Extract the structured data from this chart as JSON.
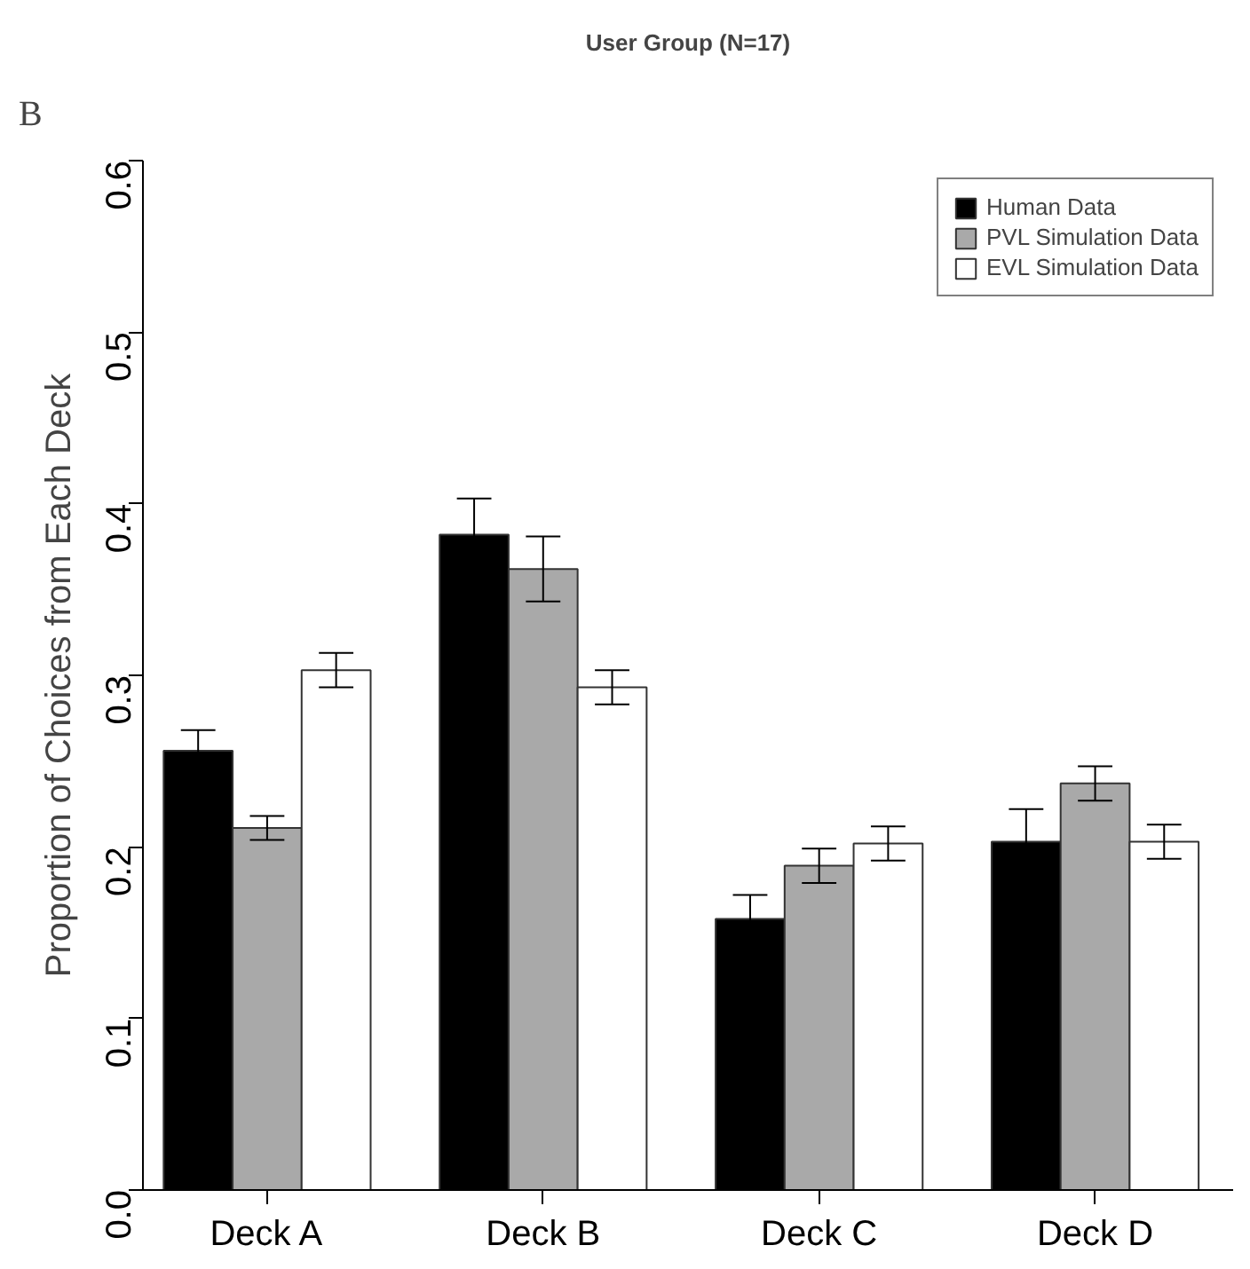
{
  "chart_data": {
    "type": "bar",
    "title": "User Group (N=17)",
    "ylabel": "Proportion of Choices from Each Deck",
    "annotations": [
      "B"
    ],
    "categories": [
      "Deck A",
      "Deck B",
      "Deck C",
      "Deck D"
    ],
    "series": [
      {
        "name": "Human Data",
        "color": "#000000",
        "values": [
          0.256,
          0.382,
          0.158,
          0.203
        ],
        "errors": [
          0.012,
          0.021,
          0.014,
          0.019
        ]
      },
      {
        "name": "PVL Simulation Data",
        "color": "#a9a9a9",
        "values": [
          0.211,
          0.362,
          0.189,
          0.237
        ],
        "errors": [
          0.007,
          0.019,
          0.01,
          0.01
        ]
      },
      {
        "name": "EVL Simulation Data",
        "color": "#ffffff",
        "values": [
          0.303,
          0.293,
          0.202,
          0.203
        ],
        "errors": [
          0.01,
          0.01,
          0.01,
          0.01
        ]
      }
    ],
    "ylim": [
      0,
      0.6
    ],
    "yticks": [
      {
        "value": 0,
        "label": "0.0"
      },
      0.1,
      0.2,
      0.3,
      0.4,
      0.5,
      0.6
    ],
    "grid": false,
    "legend": "top right"
  }
}
